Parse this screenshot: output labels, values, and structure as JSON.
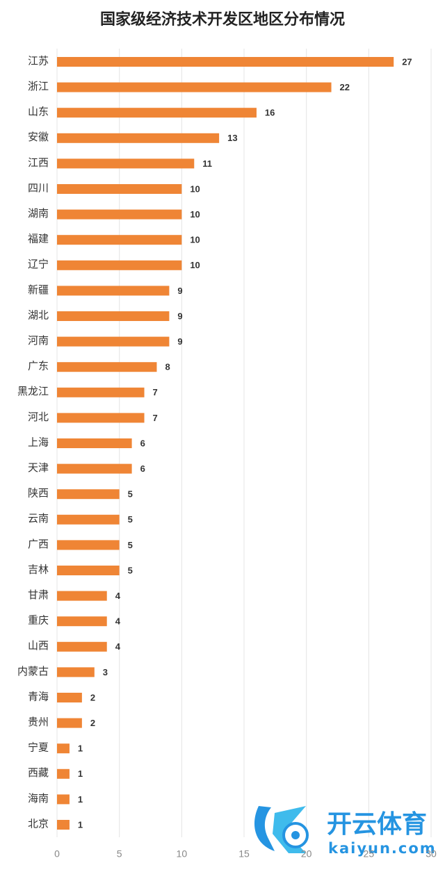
{
  "chart_data": {
    "type": "barh",
    "title": "国家级经济技术开发区地区分布情况",
    "categories": [
      "江苏",
      "浙江",
      "山东",
      "安徽",
      "江西",
      "四川",
      "湖南",
      "福建",
      "辽宁",
      "新疆",
      "湖北",
      "河南",
      "广东",
      "黑龙江",
      "河北",
      "上海",
      "天津",
      "陕西",
      "云南",
      "广西",
      "吉林",
      "甘肃",
      "重庆",
      "山西",
      "内蒙古",
      "青海",
      "贵州",
      "宁夏",
      "西藏",
      "海南",
      "北京"
    ],
    "values": [
      27,
      22,
      16,
      13,
      11,
      10,
      10,
      10,
      10,
      9,
      9,
      9,
      8,
      7,
      7,
      6,
      6,
      5,
      5,
      5,
      5,
      4,
      4,
      4,
      3,
      2,
      2,
      1,
      1,
      1,
      1
    ],
    "color": "#ef8535",
    "xlim": [
      0,
      30
    ],
    "xticks": [
      0,
      5,
      10,
      15,
      20,
      25,
      30
    ],
    "grid": true,
    "watermark": {
      "brand": "开云体育",
      "url": "kaiyun.com"
    }
  }
}
